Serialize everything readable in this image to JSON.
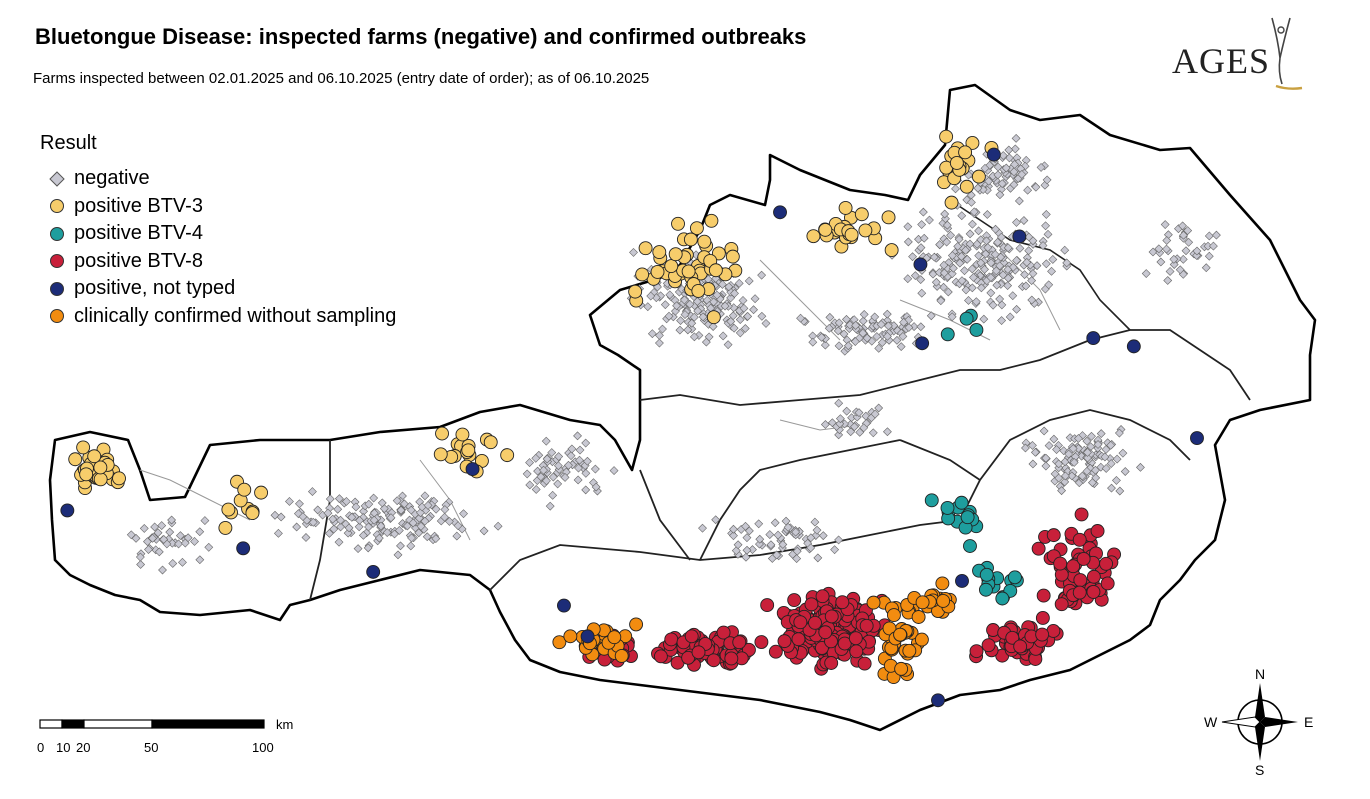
{
  "title": "Bluetongue Disease: inspected farms (negative) and confirmed outbreaks",
  "subtitle": "Farms inspected between 02.01.2025 and 06.10.2025 (entry date of order); as of 06.10.2025",
  "logo": {
    "text": "AGES"
  },
  "legend": {
    "title": "Result",
    "items": [
      {
        "label": "negative",
        "color": "#c8c8d2",
        "shape": "diamond"
      },
      {
        "label": "positive BTV-3",
        "color": "#f7cd6b",
        "shape": "circle"
      },
      {
        "label": "positive BTV-4",
        "color": "#1e9e9e",
        "shape": "circle"
      },
      {
        "label": "positive BTV-8",
        "color": "#c8203a",
        "shape": "circle"
      },
      {
        "label": "positive, not typed",
        "color": "#1c2c78",
        "shape": "circle"
      },
      {
        "label": "clinically confirmed without sampling",
        "color": "#f28c10",
        "shape": "circle"
      }
    ]
  },
  "scale": {
    "unit": "km",
    "ticks": [
      "0",
      "10",
      "20",
      "50",
      "100"
    ]
  },
  "compass": {
    "n": "N",
    "s": "S",
    "e": "E",
    "w": "W"
  }
}
